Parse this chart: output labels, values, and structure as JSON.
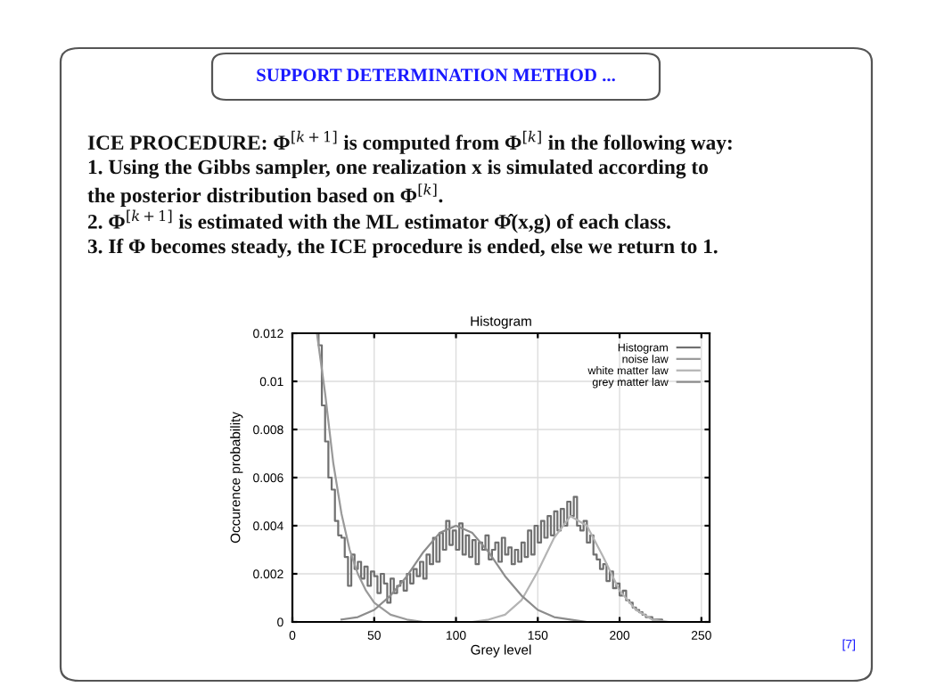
{
  "chart_data": {
    "type": "line",
    "title": "Histogram",
    "xlabel": "Grey level",
    "ylabel": "Occurence probability",
    "xlim": [
      0,
      255
    ],
    "xticks": [
      0,
      50,
      100,
      150,
      200,
      250
    ],
    "ylim": [
      0,
      0.012
    ],
    "yticks": [
      0,
      0.002,
      0.004,
      0.006,
      0.008,
      0.01,
      0.012
    ],
    "grid": true,
    "legend": "top right",
    "annotations": [
      "SUPPORT DETERMINATION METHOD ...",
      "ICE PROCEDURE: Φ$^{[k+1]}$ is computed from Φ$^{[k]}$ in the following way:",
      "1. Using the Gibbs sampler, one realization x is simulated according to",
      "the posterior distribution based on Φ$^{[k]}$.",
      "2. Φ$^{[k+1]}$ is estimated with the ML estimator Φ̂(x,g) of each class.",
      "3. If Φ becomes steady, the ICE procedure is ended, else we return to 1.",
      "[7]"
    ],
    "series": [
      {
        "name": "Histogram",
        "type": "step",
        "color": "#707070",
        "x": [
          14,
          16,
          18,
          20,
          22,
          24,
          26,
          28,
          30,
          32,
          34,
          36,
          38,
          40,
          42,
          44,
          46,
          48,
          50,
          52,
          54,
          56,
          58,
          60,
          62,
          64,
          66,
          68,
          70,
          72,
          74,
          76,
          78,
          80,
          82,
          84,
          86,
          88,
          90,
          92,
          94,
          96,
          98,
          100,
          102,
          104,
          106,
          108,
          110,
          112,
          114,
          116,
          118,
          120,
          122,
          124,
          126,
          128,
          130,
          132,
          134,
          136,
          138,
          140,
          142,
          144,
          146,
          148,
          150,
          152,
          154,
          156,
          158,
          160,
          162,
          164,
          166,
          168,
          170,
          172,
          174,
          176,
          178,
          180,
          182,
          184,
          186,
          188,
          190,
          192,
          194,
          196,
          198,
          200,
          202,
          204,
          206,
          208,
          210,
          212,
          214,
          216,
          218,
          220,
          222,
          224,
          226,
          228,
          230
        ],
        "values": [
          0.012,
          0.0115,
          0.009,
          0.0075,
          0.006,
          0.0055,
          0.0042,
          0.0036,
          0.0035,
          0.0027,
          0.0015,
          0.0028,
          0.0022,
          0.0025,
          0.0018,
          0.0023,
          0.0015,
          0.0021,
          0.0019,
          0.0012,
          0.002,
          0.0016,
          0.0008,
          0.0018,
          0.0012,
          0.0015,
          0.0017,
          0.0013,
          0.002,
          0.0016,
          0.0022,
          0.0019,
          0.0025,
          0.0018,
          0.0028,
          0.0024,
          0.0035,
          0.0025,
          0.0037,
          0.003,
          0.0042,
          0.0032,
          0.0038,
          0.003,
          0.0041,
          0.0028,
          0.0036,
          0.0027,
          0.0034,
          0.0024,
          0.0033,
          0.003,
          0.0036,
          0.0026,
          0.003,
          0.0033,
          0.0025,
          0.0035,
          0.0028,
          0.0031,
          0.0024,
          0.003,
          0.0025,
          0.0033,
          0.0027,
          0.0038,
          0.0028,
          0.004,
          0.0033,
          0.0042,
          0.0035,
          0.0044,
          0.0036,
          0.0046,
          0.0038,
          0.0047,
          0.004,
          0.005,
          0.0044,
          0.0052,
          0.004,
          0.0038,
          0.0042,
          0.0033,
          0.0036,
          0.0028,
          0.0026,
          0.0022,
          0.0024,
          0.0017,
          0.0021,
          0.0014,
          0.0016,
          0.0011,
          0.0013,
          0.0009,
          0.0008,
          0.0006,
          0.0005,
          0.0004,
          0.0003,
          0.0002,
          0.0002,
          0.0001,
          0.0001,
          0.0001,
          0,
          0,
          0
        ]
      },
      {
        "name": "noise law",
        "color": "#9a9a9a",
        "x": [
          15,
          18,
          20,
          25,
          30,
          35,
          40,
          45,
          50,
          60,
          70,
          80,
          100
        ],
        "values": [
          0.012,
          0.0105,
          0.0095,
          0.0066,
          0.0045,
          0.003,
          0.002,
          0.0013,
          0.0008,
          0.0003,
          0.0001,
          0,
          0
        ]
      },
      {
        "name": "white matter law",
        "color": "#b4b4b4",
        "x": [
          110,
          120,
          130,
          140,
          150,
          160,
          170,
          180,
          190,
          200,
          210,
          220,
          230,
          240
        ],
        "values": [
          0,
          0.0001,
          0.0003,
          0.0009,
          0.0021,
          0.0035,
          0.0044,
          0.004,
          0.0027,
          0.0013,
          0.0005,
          0.0001,
          0,
          0
        ]
      },
      {
        "name": "grey matter law",
        "color": "#8c8c8c",
        "x": [
          30,
          40,
          50,
          60,
          70,
          80,
          90,
          100,
          110,
          120,
          130,
          140,
          150,
          160,
          170,
          180,
          200
        ],
        "values": [
          0.0001,
          0.0002,
          0.0005,
          0.0011,
          0.0019,
          0.0029,
          0.0037,
          0.004,
          0.0037,
          0.0029,
          0.0019,
          0.0011,
          0.0005,
          0.0002,
          0.0001,
          0,
          0
        ]
      }
    ]
  }
}
